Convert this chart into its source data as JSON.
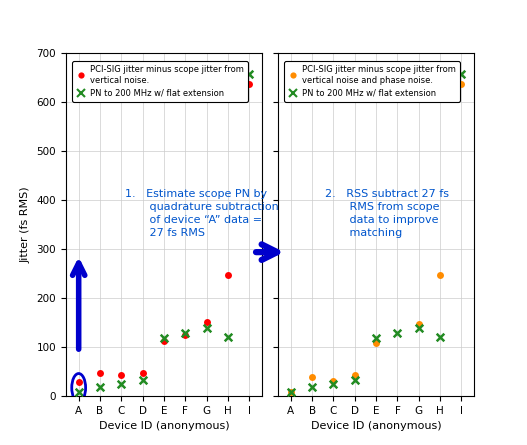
{
  "categories": [
    "A",
    "B",
    "C",
    "D",
    "E",
    "F",
    "G",
    "H",
    "I"
  ],
  "left_red_dots": [
    28,
    48,
    42,
    48,
    112,
    125,
    152,
    248,
    638
  ],
  "left_green_x": [
    8,
    18,
    25,
    32,
    118,
    128,
    138,
    120,
    658
  ],
  "right_orange_dots": [
    8,
    38,
    30,
    42,
    108,
    null,
    148,
    248,
    638
  ],
  "right_green_x": [
    8,
    18,
    25,
    32,
    118,
    128,
    138,
    120,
    658
  ],
  "ylim": [
    0,
    700
  ],
  "yticks": [
    0,
    100,
    200,
    300,
    400,
    500,
    600,
    700
  ],
  "ylabel": "Jitter (fs RMS)",
  "xlabel": "Device ID (anonymous)",
  "left_legend1": "PCI-SIG jitter minus scope jitter from\nvertical noise.",
  "left_legend2": "PN to 200 MHz w/ flat extension",
  "right_legend1": "PCI-SIG jitter minus scope jitter from\nvertical noise and phase noise.",
  "right_legend2": "PN to 200 MHz w/ flat extension",
  "annotation1": "1.   Estimate scope PN by\n       quadrature subtraction\n       of device “A” data =\n       27 fs RMS",
  "annotation2": "2.   RSS subtract 27 fs\n       RMS from scope\n       data to improve\n       matching",
  "red_color": "#ff0000",
  "orange_color": "#ff8c00",
  "green_color": "#228B22",
  "arrow_color": "#0000cc",
  "title_color": "#0055cc",
  "bg_color": "#ffffff"
}
